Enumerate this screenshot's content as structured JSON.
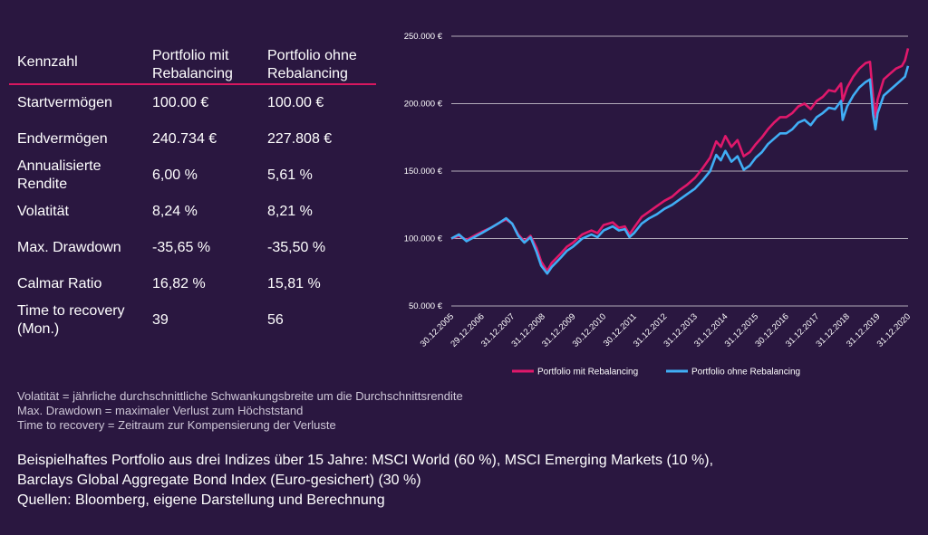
{
  "table": {
    "headers": [
      "Kennzahl",
      "Portfolio mit Rebalancing",
      "Portfolio ohne Rebalancing"
    ],
    "rows": [
      [
        "Startvermögen",
        "100.00 €",
        "100.00 €"
      ],
      [
        "Endvermögen",
        "240.734 €",
        "227.808 €"
      ],
      [
        "Annualisierte Rendite",
        "6,00 %",
        "5,61 %"
      ],
      [
        "Volatität",
        "8,24 %",
        "8,21 %"
      ],
      [
        "Max. Drawdown",
        "-35,65 %",
        "-35,50 %"
      ],
      [
        "Calmar Ratio",
        "16,82 %",
        "15,81 %"
      ],
      [
        "Time to recovery (Mon.)",
        "39",
        "56"
      ]
    ]
  },
  "notes": [
    "Volatität = jährliche durchschnittliche Schwankungsbreite um die Durchschnittsrendite",
    "Max. Drawdown = maximaler Verlust zum Höchststand",
    "Time to recovery = Zeitraum zur Kompensierung der Verluste"
  ],
  "footer": [
    "Beispielhaftes Portfolio aus drei Indizes über 15 Jahre: MSCI World (60 %), MSCI Emerging Markets (10 %),",
    "Barclays Global Aggregate Bond Index (Euro-gesichert) (30 %)",
    "Quellen: Bloomberg, eigene Darstellung und Berechnung"
  ],
  "chart_data": {
    "type": "line",
    "x": [
      "30.12.2005",
      "29.12.2006",
      "31.12.2007",
      "31.12.2008",
      "31.12.2009",
      "30.12.2010",
      "30.12.2011",
      "31.12.2012",
      "31.12.2013",
      "31.12.2014",
      "31.12.2015",
      "30.12.2016",
      "31.12.2017",
      "31.12.2018",
      "31.12.2019",
      "31.12.2020"
    ],
    "y_ticks": [
      "50.000 €",
      "100.000 €",
      "150.000 €",
      "200.000 €",
      "250.000 €"
    ],
    "ylim": [
      50000,
      250000
    ],
    "grid": true,
    "legend_position": "bottom",
    "series": [
      {
        "name": "Portfolio mit Rebalancing",
        "color": "#e0186b",
        "points": [
          [
            0,
            100000
          ],
          [
            0.25,
            102000
          ],
          [
            0.5,
            99000
          ],
          [
            0.75,
            102000
          ],
          [
            1,
            105000
          ],
          [
            1.3,
            108000
          ],
          [
            1.6,
            112000
          ],
          [
            1.8,
            114000
          ],
          [
            2,
            111000
          ],
          [
            2.2,
            103000
          ],
          [
            2.4,
            98000
          ],
          [
            2.6,
            102000
          ],
          [
            2.8,
            93000
          ],
          [
            2.95,
            83000
          ],
          [
            3.15,
            76000
          ],
          [
            3.3,
            82000
          ],
          [
            3.6,
            89000
          ],
          [
            3.8,
            94000
          ],
          [
            4,
            97000
          ],
          [
            4.3,
            103000
          ],
          [
            4.6,
            106000
          ],
          [
            4.8,
            104000
          ],
          [
            5,
            110000
          ],
          [
            5.3,
            112000
          ],
          [
            5.5,
            108000
          ],
          [
            5.7,
            109000
          ],
          [
            5.85,
            103000
          ],
          [
            6,
            108000
          ],
          [
            6.25,
            116000
          ],
          [
            6.5,
            120000
          ],
          [
            6.75,
            124000
          ],
          [
            7,
            128000
          ],
          [
            7.25,
            131000
          ],
          [
            7.5,
            136000
          ],
          [
            7.75,
            140000
          ],
          [
            8,
            145000
          ],
          [
            8.25,
            152000
          ],
          [
            8.5,
            160000
          ],
          [
            8.7,
            172000
          ],
          [
            8.85,
            168000
          ],
          [
            9,
            176000
          ],
          [
            9.2,
            168000
          ],
          [
            9.4,
            173000
          ],
          [
            9.6,
            161000
          ],
          [
            9.8,
            164000
          ],
          [
            10,
            170000
          ],
          [
            10.2,
            175000
          ],
          [
            10.4,
            181000
          ],
          [
            10.6,
            186000
          ],
          [
            10.8,
            190000
          ],
          [
            11,
            190000
          ],
          [
            11.2,
            193000
          ],
          [
            11.4,
            198000
          ],
          [
            11.6,
            200000
          ],
          [
            11.8,
            196000
          ],
          [
            12,
            202000
          ],
          [
            12.2,
            205000
          ],
          [
            12.4,
            210000
          ],
          [
            12.6,
            209000
          ],
          [
            12.8,
            215000
          ],
          [
            12.85,
            202000
          ],
          [
            13,
            212000
          ],
          [
            13.2,
            220000
          ],
          [
            13.4,
            226000
          ],
          [
            13.6,
            230000
          ],
          [
            13.75,
            231000
          ],
          [
            13.85,
            205000
          ],
          [
            13.93,
            190000
          ],
          [
            14,
            203000
          ],
          [
            14.2,
            218000
          ],
          [
            14.4,
            222000
          ],
          [
            14.6,
            226000
          ],
          [
            14.8,
            228000
          ],
          [
            14.9,
            232000
          ],
          [
            15,
            241000
          ]
        ]
      },
      {
        "name": "Portfolio ohne Rebalancing",
        "color": "#40aef5",
        "points": [
          [
            0,
            100000
          ],
          [
            0.25,
            103000
          ],
          [
            0.5,
            98000
          ],
          [
            0.75,
            101000
          ],
          [
            1,
            104000
          ],
          [
            1.3,
            108000
          ],
          [
            1.6,
            112000
          ],
          [
            1.8,
            115000
          ],
          [
            2,
            111000
          ],
          [
            2.2,
            102000
          ],
          [
            2.4,
            97000
          ],
          [
            2.6,
            101000
          ],
          [
            2.8,
            90000
          ],
          [
            2.95,
            80000
          ],
          [
            3.15,
            74000
          ],
          [
            3.3,
            79000
          ],
          [
            3.6,
            86000
          ],
          [
            3.8,
            91000
          ],
          [
            4,
            94000
          ],
          [
            4.3,
            100000
          ],
          [
            4.6,
            103000
          ],
          [
            4.8,
            101000
          ],
          [
            5,
            106000
          ],
          [
            5.3,
            109000
          ],
          [
            5.5,
            106000
          ],
          [
            5.7,
            107000
          ],
          [
            5.85,
            101000
          ],
          [
            6,
            104000
          ],
          [
            6.25,
            111000
          ],
          [
            6.5,
            115000
          ],
          [
            6.75,
            118000
          ],
          [
            7,
            122000
          ],
          [
            7.25,
            125000
          ],
          [
            7.5,
            129000
          ],
          [
            7.75,
            133000
          ],
          [
            8,
            137000
          ],
          [
            8.25,
            143000
          ],
          [
            8.5,
            150000
          ],
          [
            8.7,
            162000
          ],
          [
            8.85,
            158000
          ],
          [
            9,
            165000
          ],
          [
            9.2,
            157000
          ],
          [
            9.4,
            161000
          ],
          [
            9.6,
            151000
          ],
          [
            9.8,
            154000
          ],
          [
            10,
            160000
          ],
          [
            10.2,
            164000
          ],
          [
            10.4,
            170000
          ],
          [
            10.6,
            174000
          ],
          [
            10.8,
            178000
          ],
          [
            11,
            178000
          ],
          [
            11.2,
            181000
          ],
          [
            11.4,
            186000
          ],
          [
            11.6,
            188000
          ],
          [
            11.8,
            184000
          ],
          [
            12,
            190000
          ],
          [
            12.2,
            193000
          ],
          [
            12.4,
            197000
          ],
          [
            12.6,
            196000
          ],
          [
            12.8,
            202000
          ],
          [
            12.85,
            188000
          ],
          [
            13,
            198000
          ],
          [
            13.2,
            206000
          ],
          [
            13.4,
            212000
          ],
          [
            13.6,
            216000
          ],
          [
            13.75,
            218000
          ],
          [
            13.85,
            192000
          ],
          [
            13.93,
            181000
          ],
          [
            14,
            193000
          ],
          [
            14.2,
            206000
          ],
          [
            14.4,
            210000
          ],
          [
            14.6,
            214000
          ],
          [
            14.8,
            218000
          ],
          [
            14.9,
            220000
          ],
          [
            15,
            228000
          ]
        ]
      }
    ]
  }
}
